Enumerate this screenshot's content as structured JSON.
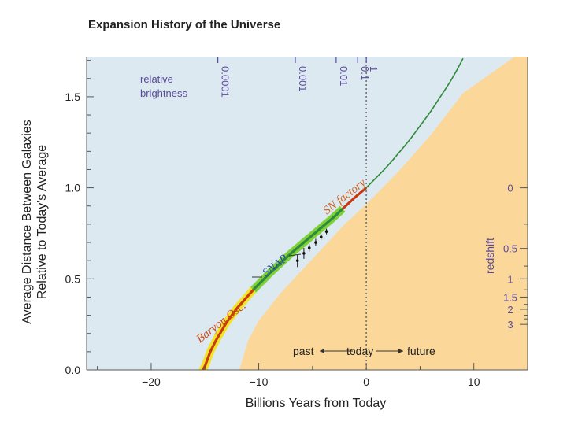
{
  "chart_data": {
    "type": "line",
    "title": "Expansion History of the Universe",
    "xlabel": "Billions Years from Today",
    "ylabel_line1": "Average Distance Between Galaxies",
    "ylabel_line2": "Relative to Today's Average",
    "xlim": [
      -26,
      15
    ],
    "ylim": [
      0.0,
      1.72
    ],
    "x_ticks": [
      -20,
      -10,
      0,
      10
    ],
    "x_tick_labels": [
      "−20",
      "−10",
      "0",
      "10"
    ],
    "y_ticks": [
      0.0,
      0.5,
      1.0,
      1.5
    ],
    "y_tick_labels": [
      "0.0",
      "0.5",
      "1.0",
      "1.5"
    ],
    "series": [
      {
        "name": "expansion",
        "x": [
          -15.2,
          -15.0,
          -14.5,
          -14.0,
          -13.0,
          -12.0,
          -10.5,
          -9.0,
          -7.0,
          -5.0,
          -3.0,
          -1.0,
          0.0,
          2.0,
          4.0,
          6.0,
          8.0,
          9.0
        ],
        "y": [
          0.0,
          0.02,
          0.1,
          0.16,
          0.26,
          0.34,
          0.44,
          0.53,
          0.64,
          0.74,
          0.84,
          0.95,
          1.0,
          1.12,
          1.26,
          1.42,
          1.6,
          1.71
        ]
      },
      {
        "name": "Baryon Osc.",
        "x_range": [
          -15.2,
          -10.5
        ]
      },
      {
        "name": "SNAP",
        "x_range": [
          -10.5,
          -2.2
        ]
      },
      {
        "name": "SN factory",
        "x_range": [
          -2.2,
          0.0
        ]
      }
    ],
    "future_boundary": {
      "x": [
        -11.8,
        -11.0,
        -10.0,
        -8.0,
        -5.0,
        -2.0,
        0.0,
        3.0,
        6.0,
        9.0
      ],
      "y": [
        0.0,
        0.16,
        0.27,
        0.42,
        0.61,
        0.8,
        0.91,
        1.09,
        1.29,
        1.52
      ]
    },
    "today_line_x": 0,
    "relative_brightness_label_line1": "relative",
    "relative_brightness_label_line2": "brightness",
    "relative_brightness_ticks": [
      {
        "label": "0.0001",
        "x": -13.8
      },
      {
        "label": "0.001",
        "x": -6.6
      },
      {
        "label": "0.01",
        "x": -2.8
      },
      {
        "label": "0.1",
        "x": -0.8
      },
      {
        "label": "1",
        "x": 0.0
      }
    ],
    "redshift_label": "redshift",
    "redshift_ticks": [
      {
        "label": "0",
        "y": 1.0
      },
      {
        "label": "0.5",
        "y": 0.667
      },
      {
        "label": "1",
        "y": 0.5
      },
      {
        "label": "1.5",
        "y": 0.4
      },
      {
        "label": "2",
        "y": 0.333
      },
      {
        "label": "3",
        "y": 0.25
      }
    ],
    "redshift_minor_ticks": [
      0.8,
      0.57,
      0.44,
      0.36,
      0.3,
      0.28
    ],
    "snap_data_points": [
      {
        "x": -6.4,
        "y": 0.6,
        "err": 0.035
      },
      {
        "x": -5.8,
        "y": 0.64,
        "err": 0.03
      },
      {
        "x": -5.3,
        "y": 0.67,
        "err": 0.02
      },
      {
        "x": -4.7,
        "y": 0.7,
        "err": 0.02
      },
      {
        "x": -4.2,
        "y": 0.73,
        "err": 0.015
      },
      {
        "x": -3.7,
        "y": 0.76,
        "err": 0.015
      }
    ],
    "annotations": {
      "baryon": "Baryon Osc.",
      "snap": "SNAP",
      "sn_factory": "SN factory",
      "past": "past",
      "today": "today",
      "future": "future"
    },
    "colors": {
      "past_bg": "#dde9f1",
      "future_bg": "#fbd89a",
      "green_curve": "#2f8a3a",
      "red_curve": "#c83a10",
      "yellow_band": "#f2e426",
      "snap_band": "#7fd13b",
      "purple": "#5a4a9c",
      "sn_factory_text": "#d0641e",
      "baryon_text": "#c84a18",
      "snap_text": "#2a4aa0"
    }
  }
}
